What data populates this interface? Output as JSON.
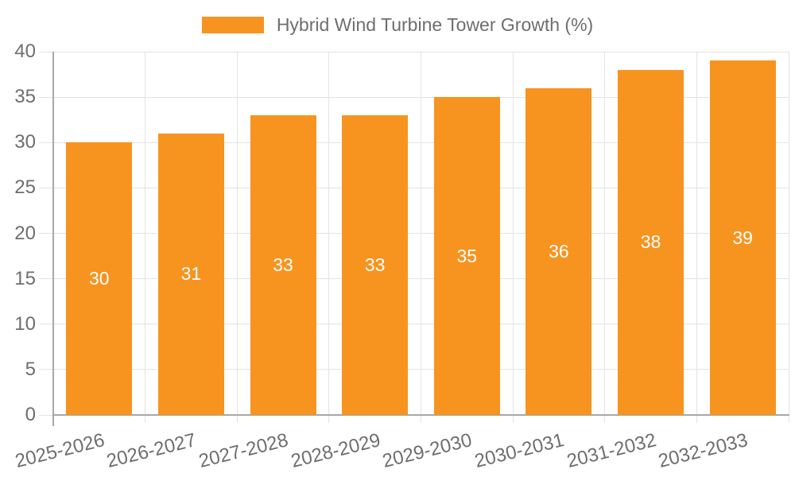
{
  "chart_data": {
    "type": "bar",
    "legend_label": "Hybrid Wind Turbine Tower Growth (%)",
    "legend_position": "top",
    "categories": [
      "2025-2026",
      "2026-2027",
      "2027-2028",
      "2028-2029",
      "2029-2030",
      "2030-2031",
      "2031-2032",
      "2032-2033"
    ],
    "values": [
      30,
      31,
      33,
      33,
      35,
      36,
      38,
      39
    ],
    "bar_value_labels": [
      "30",
      "31",
      "33",
      "33",
      "35",
      "36",
      "38",
      "39"
    ],
    "xlabel": "",
    "ylabel": "",
    "ylim": [
      0,
      40
    ],
    "yticks": [
      0,
      5,
      10,
      15,
      20,
      25,
      30,
      35,
      40
    ],
    "grid": "on",
    "x_label_rotation_deg": -14,
    "colors": {
      "bar": "#f79420",
      "bar_label_text": "#ffffff",
      "axis_text": "#6e6e6e",
      "gridline": "#e3e3e3",
      "axis_border": "#a8a8a8",
      "background": "#ffffff"
    }
  }
}
